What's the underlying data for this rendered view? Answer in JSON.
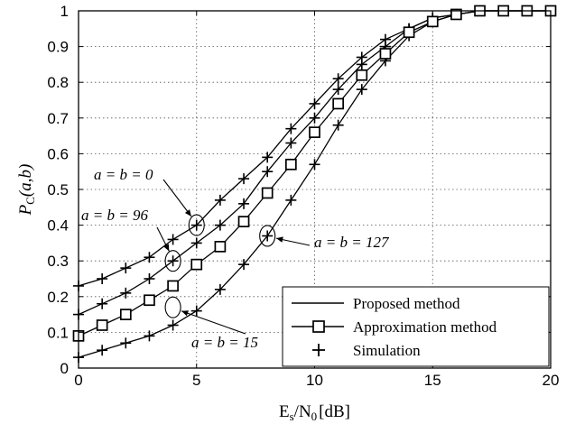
{
  "chart_data": {
    "type": "line",
    "xlabel": "Es/N0 [dB]",
    "xlabel_parts": {
      "main": "E",
      "sub1": "s",
      "mid": "/N",
      "sub2": "0",
      "unit": "[dB]"
    },
    "ylabel": "PC(a,b)",
    "ylabel_parts": {
      "main": "P",
      "sub": "C",
      "args": "(a,b)"
    },
    "xlim": [
      0,
      20
    ],
    "ylim": [
      0,
      1
    ],
    "xticks": [
      "0",
      "5",
      "10",
      "15",
      "20"
    ],
    "yticks": [
      "0",
      "0.1",
      "0.2",
      "0.3",
      "0.4",
      "0.5",
      "0.6",
      "0.7",
      "0.8",
      "0.9",
      "1"
    ],
    "grid": true,
    "legend_placement": "bottom-right",
    "x": [
      0,
      1,
      2,
      3,
      4,
      5,
      6,
      7,
      8,
      9,
      10,
      11,
      12,
      13,
      14,
      15,
      16,
      17,
      18,
      19,
      20
    ],
    "series": [
      {
        "label": "a = b = 0",
        "values": [
          0.23,
          0.25,
          0.28,
          0.31,
          0.36,
          0.4,
          0.47,
          0.53,
          0.59,
          0.67,
          0.74,
          0.81,
          0.87,
          0.92,
          0.95,
          0.98,
          0.99,
          1.0,
          1.0,
          1.0,
          1.0
        ]
      },
      {
        "label": "a = b = 96",
        "values": [
          0.15,
          0.18,
          0.21,
          0.25,
          0.3,
          0.35,
          0.4,
          0.46,
          0.55,
          0.63,
          0.7,
          0.78,
          0.85,
          0.9,
          0.95,
          0.98,
          0.99,
          1.0,
          1.0,
          1.0,
          1.0
        ]
      },
      {
        "label": "a = b = 127",
        "values": [
          0.09,
          0.12,
          0.15,
          0.19,
          0.23,
          0.29,
          0.34,
          0.41,
          0.49,
          0.57,
          0.66,
          0.74,
          0.82,
          0.88,
          0.94,
          0.97,
          0.99,
          1.0,
          1.0,
          1.0,
          1.0
        ]
      },
      {
        "label": "a = b = 15",
        "values": [
          0.03,
          0.05,
          0.07,
          0.09,
          0.12,
          0.16,
          0.22,
          0.29,
          0.37,
          0.47,
          0.57,
          0.68,
          0.78,
          0.86,
          0.93,
          0.97,
          0.99,
          1.0,
          1.0,
          1.0,
          1.0
        ]
      }
    ],
    "annotations": [
      {
        "text": "a = b = 0",
        "target": [
          5,
          0.4
        ]
      },
      {
        "text": "a = b = 96",
        "target": [
          4,
          0.3
        ]
      },
      {
        "text": "a = b = 127",
        "target": [
          8,
          0.37
        ]
      },
      {
        "text": "a = b = 15",
        "target": [
          4,
          0.17
        ]
      }
    ],
    "legend": [
      {
        "label": "Proposed method",
        "style": "solid-line"
      },
      {
        "label": "Approximation method",
        "style": "line-square"
      },
      {
        "label": "Simulation",
        "style": "plus"
      }
    ]
  }
}
